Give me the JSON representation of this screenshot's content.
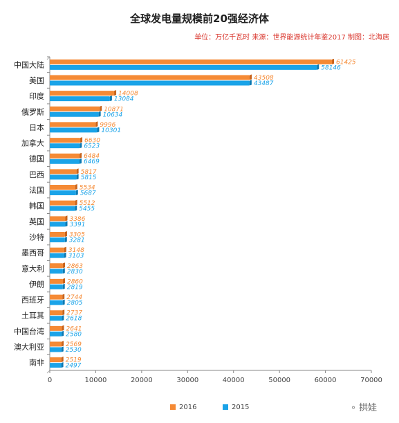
{
  "title": "全球发电量规模前20强经济体",
  "subtitle": "单位：万亿千瓦时 来源：世界能源统计年鉴2017 制图：北海居",
  "watermark": "拱娃",
  "colors": {
    "s2016": "#f58a35",
    "s2016_dark": "#c9631a",
    "s2015": "#1aa3e8",
    "s2015_dark": "#0b79b3"
  },
  "chart_data": {
    "type": "bar",
    "orientation": "horizontal",
    "categories": [
      "中国大陆",
      "美国",
      "印度",
      "俄罗斯",
      "日本",
      "加拿大",
      "德国",
      "巴西",
      "法国",
      "韩国",
      "英国",
      "沙特",
      "墨西哥",
      "意大利",
      "伊朗",
      "西班牙",
      "土耳其",
      "中国台湾",
      "澳大利亚",
      "南非"
    ],
    "series": [
      {
        "name": "2016",
        "values": [
          61425,
          43508,
          14008,
          10871,
          9996,
          6630,
          6484,
          5817,
          5534,
          5512,
          3386,
          3305,
          3148,
          2863,
          2860,
          2744,
          2737,
          2641,
          2569,
          2519
        ]
      },
      {
        "name": "2015",
        "values": [
          58146,
          43487,
          13084,
          10634,
          10301,
          6523,
          6469,
          5815,
          5687,
          5455,
          3391,
          3281,
          3103,
          2830,
          2819,
          2805,
          2618,
          2580,
          2530,
          2497
        ]
      }
    ],
    "xlim": [
      0,
      70000
    ],
    "xticks": [
      0,
      10000,
      20000,
      30000,
      40000,
      50000,
      60000,
      70000
    ],
    "grid": false,
    "legend": "bottom"
  }
}
